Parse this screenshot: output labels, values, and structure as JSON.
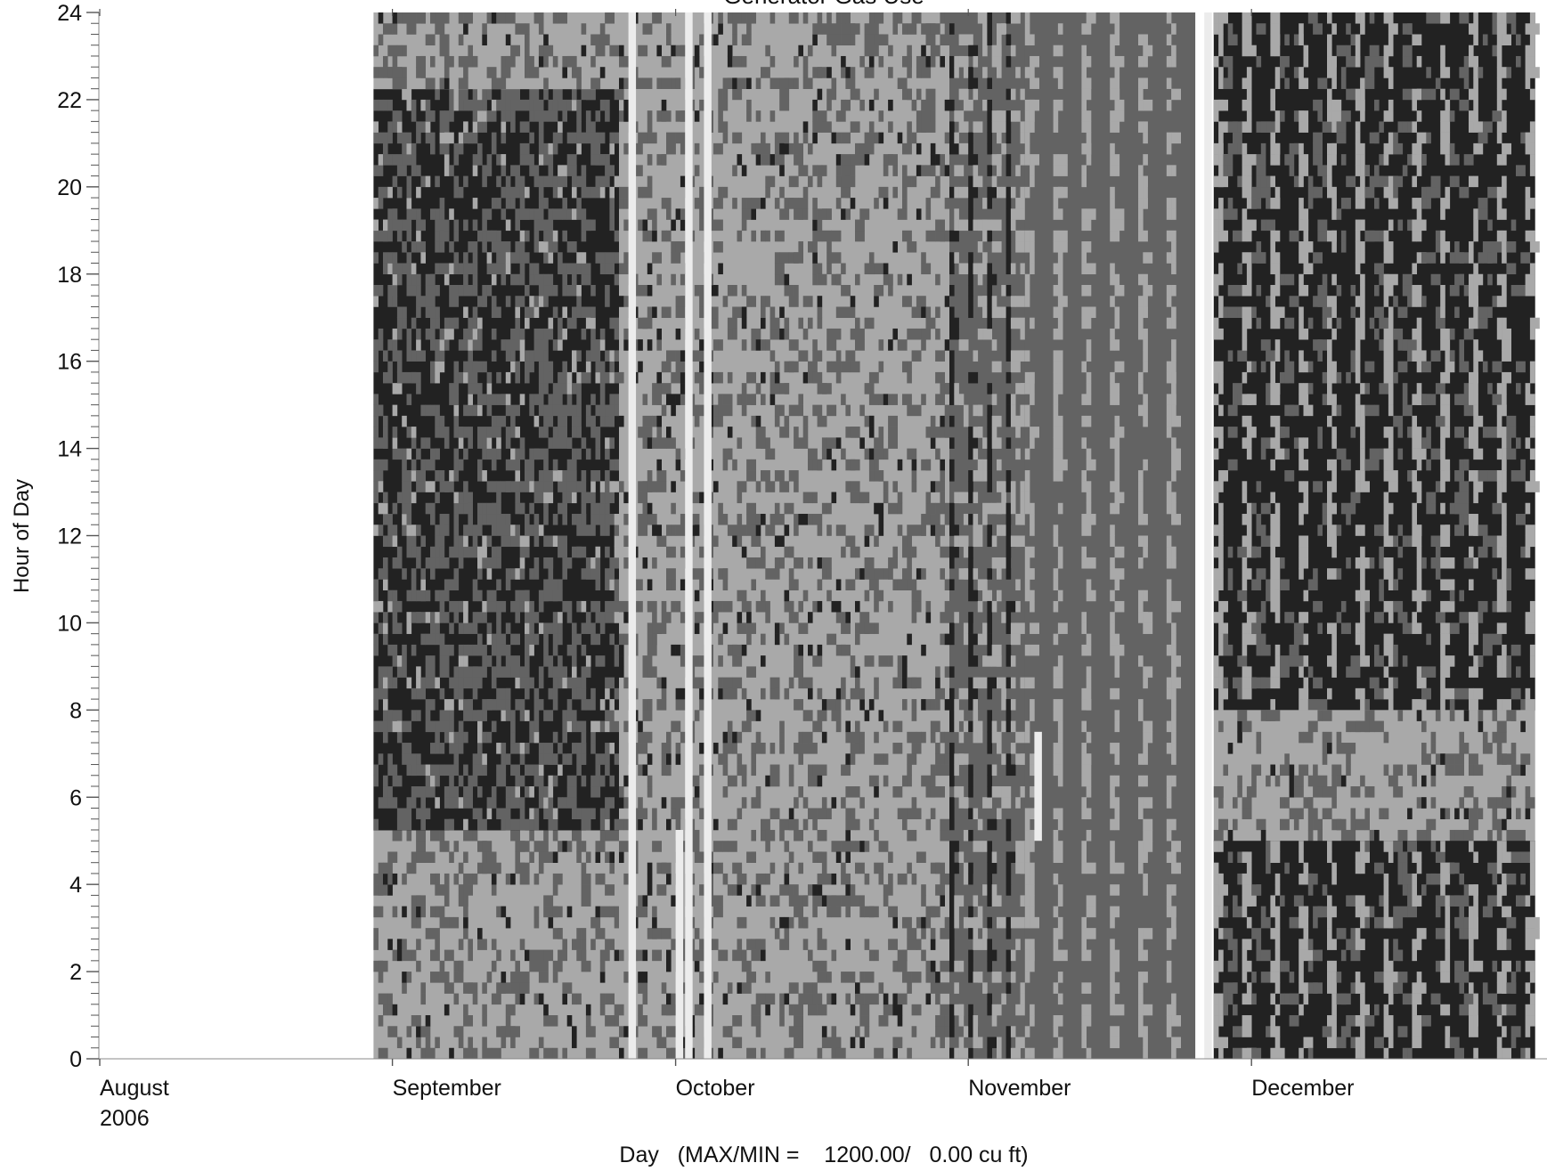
{
  "chart_data": {
    "type": "heatmap",
    "title": "Generator Gas Use",
    "xlabel": "Day   (MAX/MIN =    1200.00/   0.00 cu ft)",
    "ylabel": "Hour of Day",
    "x_range": [
      "2006-08-01",
      "2006-12-31"
    ],
    "ylim": [
      0,
      24
    ],
    "y_major_ticks": [
      0,
      2,
      4,
      6,
      8,
      10,
      12,
      14,
      16,
      18,
      20,
      22,
      24
    ],
    "y_minor_step": 0.25,
    "x_ticks": [
      {
        "date": "2006-08-01",
        "label": "August",
        "sublabel": "2006"
      },
      {
        "date": "2006-09-01",
        "label": "September",
        "sublabel": ""
      },
      {
        "date": "2006-10-01",
        "label": "October",
        "sublabel": ""
      },
      {
        "date": "2006-11-01",
        "label": "November",
        "sublabel": ""
      },
      {
        "date": "2006-12-01",
        "label": "December",
        "sublabel": ""
      }
    ],
    "max_value": 1200,
    "min_value": 0,
    "unit": "cu ft",
    "grayscale_levels": {
      "0": "#ffffff",
      "1": "#ececec",
      "2": "#a9a9a9",
      "3": "#636363",
      "4": "#222222"
    },
    "regions": [
      {
        "start": "2006-08-30",
        "end": "2006-09-25",
        "hour_from": 0,
        "hour_to": 5.25,
        "level": 2,
        "pattern": "checker_light"
      },
      {
        "start": "2006-08-30",
        "end": "2006-09-25",
        "hour_from": 5.25,
        "hour_to": 22.25,
        "level": 4,
        "pattern": "checker_dark"
      },
      {
        "start": "2006-08-30",
        "end": "2006-09-25",
        "hour_from": 22.25,
        "hour_to": 24,
        "level": 2,
        "pattern": "checker_light"
      },
      {
        "start": "2006-09-25",
        "end": "2006-10-05",
        "hour_from": 0,
        "hour_to": 24,
        "level": 2,
        "pattern": "mixed"
      },
      {
        "start": "2006-10-05",
        "end": "2006-10-30",
        "hour_from": 0,
        "hour_to": 24,
        "level": 2,
        "pattern": "checker_light"
      },
      {
        "start": "2006-10-30",
        "end": "2006-11-07",
        "hour_from": 0,
        "hour_to": 24,
        "level": 3,
        "pattern": "stripes"
      },
      {
        "start": "2006-11-07",
        "end": "2006-11-25",
        "hour_from": 0,
        "hour_to": 24,
        "level": 3,
        "pattern": "stripes_dark"
      },
      {
        "start": "2006-11-27",
        "end": "2006-12-31",
        "hour_from": 8,
        "hour_to": 24,
        "level": 4,
        "pattern": "stripes_dark"
      },
      {
        "start": "2006-11-27",
        "end": "2006-12-31",
        "hour_from": 5,
        "hour_to": 8,
        "level": 2,
        "pattern": "checker_light"
      },
      {
        "start": "2006-11-27",
        "end": "2006-12-31",
        "hour_from": 0,
        "hour_to": 5,
        "level": 4,
        "pattern": "stripes_dark"
      }
    ],
    "gaps": [
      {
        "date": "2006-09-26",
        "hour_from": 0,
        "hour_to": 24
      },
      {
        "date": "2006-10-02",
        "hour_from": 0,
        "hour_to": 24
      },
      {
        "date": "2006-10-04",
        "hour_from": 0,
        "hour_to": 24
      },
      {
        "date": "2006-11-26",
        "hour_from": 0,
        "hour_to": 24
      },
      {
        "date": "2006-10-01",
        "hour_from": 0,
        "hour_to": 5.25
      },
      {
        "date": "2006-11-08",
        "hour_from": 5,
        "hour_to": 7.5
      }
    ],
    "grid": false,
    "legend": "none"
  }
}
